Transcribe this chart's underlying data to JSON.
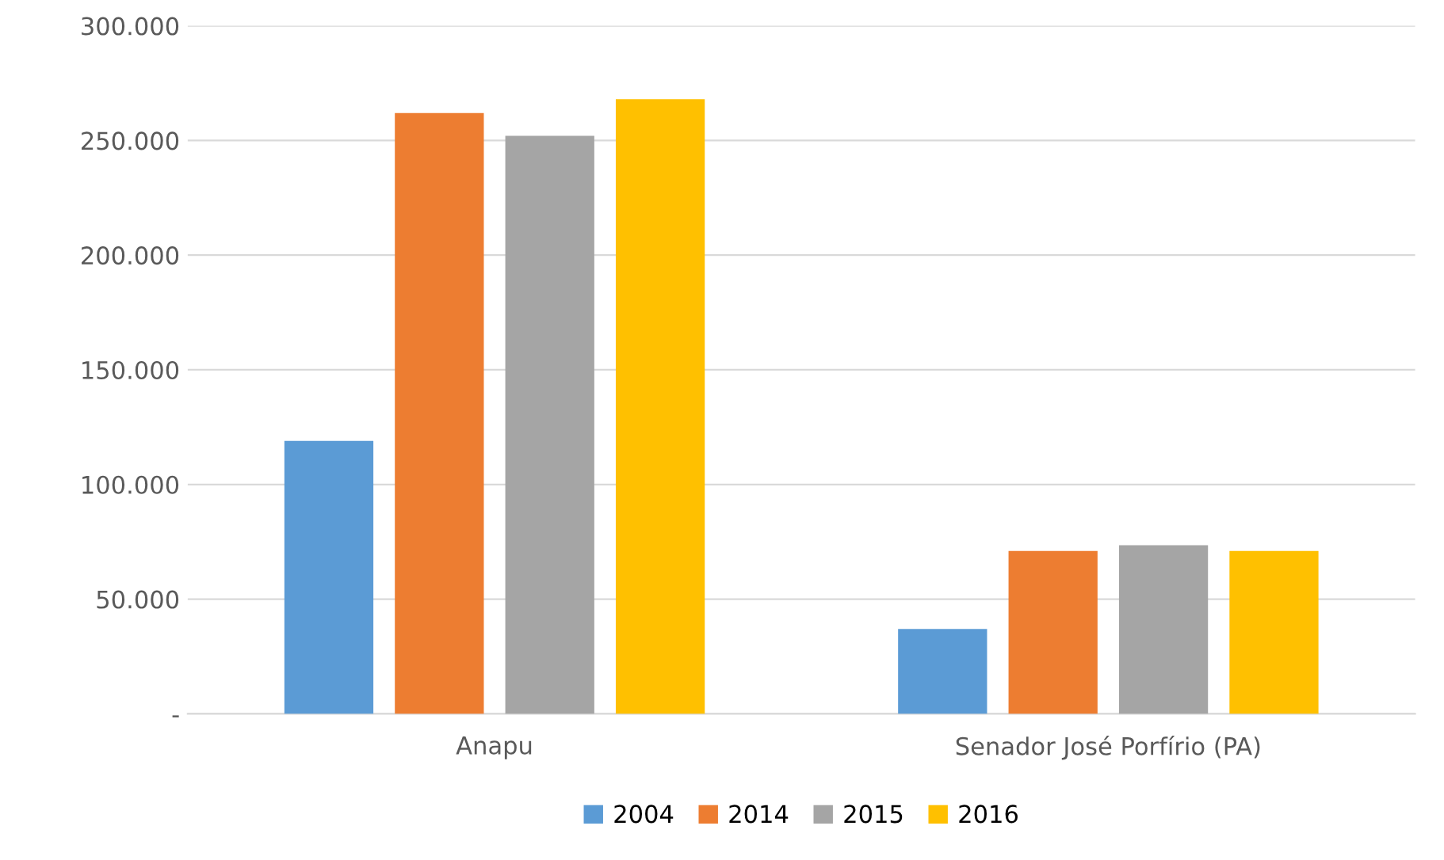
{
  "chart_data": {
    "type": "bar",
    "categories": [
      "Anapu",
      "Senador José Porfírio (PA)"
    ],
    "series": [
      {
        "name": "2004",
        "color": "#5b9bd5",
        "values": [
          119000,
          37000
        ]
      },
      {
        "name": "2014",
        "color": "#ed7d31",
        "values": [
          262000,
          71000
        ]
      },
      {
        "name": "2015",
        "color": "#a5a5a5",
        "values": [
          252000,
          73500
        ]
      },
      {
        "name": "2016",
        "color": "#ffc000",
        "values": [
          268000,
          71000
        ]
      }
    ],
    "ylim": [
      0,
      300000
    ],
    "yticks": [
      {
        "value": 0,
        "label": "-"
      },
      {
        "value": 50000,
        "label": "50.000"
      },
      {
        "value": 100000,
        "label": "100.000"
      },
      {
        "value": 150000,
        "label": "150.000"
      },
      {
        "value": 200000,
        "label": "200.000"
      },
      {
        "value": 250000,
        "label": "250.000"
      },
      {
        "value": 300000,
        "label": "300.000"
      }
    ],
    "grid": "y",
    "legend": "bottom"
  }
}
